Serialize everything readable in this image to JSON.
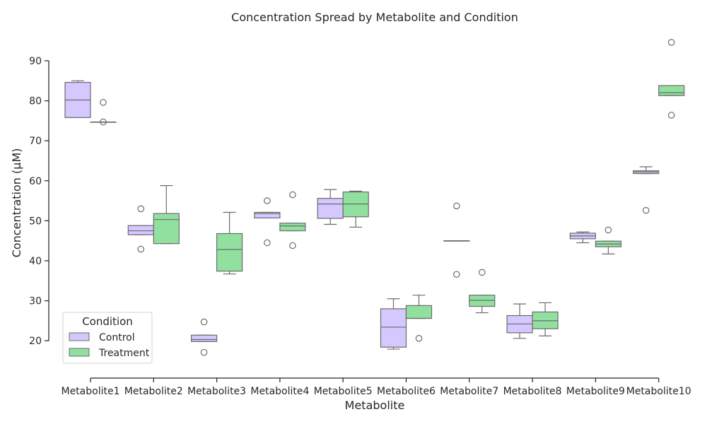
{
  "chart_data": {
    "type": "box",
    "title": "Concentration Spread by Metabolite and Condition",
    "xlabel": "Metabolite",
    "ylabel": "Concentration (μM)",
    "ylim": [
      10,
      95
    ],
    "yticks": [
      20,
      30,
      40,
      50,
      60,
      70,
      80,
      90
    ],
    "categories": [
      "Metabolite1",
      "Metabolite2",
      "Metabolite3",
      "Metabolite4",
      "Metabolite5",
      "Metabolite6",
      "Metabolite7",
      "Metabolite8",
      "Metabolite9",
      "Metabolite10"
    ],
    "legend": {
      "title": "Condition",
      "placement": "lower-left"
    },
    "series": [
      {
        "name": "Control",
        "color": "#d4c8ff",
        "boxes": [
          {
            "whislo": 75.8,
            "q1": 75.8,
            "med": 80.2,
            "q3": 84.6,
            "whishi": 85.0,
            "fliers": []
          },
          {
            "whislo": 46.5,
            "q1": 46.5,
            "med": 47.5,
            "q3": 48.8,
            "whishi": 48.8,
            "fliers": [
              53.0,
              42.9
            ]
          },
          {
            "whislo": 19.8,
            "q1": 19.8,
            "med": 20.3,
            "q3": 21.4,
            "whishi": 21.4,
            "fliers": [
              24.7,
              17.1
            ]
          },
          {
            "whislo": 50.7,
            "q1": 50.7,
            "med": 51.8,
            "q3": 52.1,
            "whishi": 52.1,
            "fliers": [
              55.0,
              44.5
            ]
          },
          {
            "whislo": 49.1,
            "q1": 50.6,
            "med": 54.2,
            "q3": 55.6,
            "whishi": 57.8,
            "fliers": []
          },
          {
            "whislo": 17.9,
            "q1": 18.4,
            "med": 23.4,
            "q3": 28.0,
            "whishi": 30.5,
            "fliers": []
          },
          {
            "whislo": 45.0,
            "q1": 45.0,
            "med": 45.0,
            "q3": 45.0,
            "whishi": 45.0,
            "fliers": [
              53.7,
              36.6
            ]
          },
          {
            "whislo": 20.6,
            "q1": 22.0,
            "med": 24.2,
            "q3": 26.3,
            "whishi": 29.2,
            "fliers": []
          },
          {
            "whislo": 44.5,
            "q1": 45.5,
            "med": 46.2,
            "q3": 46.9,
            "whishi": 47.2,
            "fliers": []
          },
          {
            "whislo": 61.8,
            "q1": 61.8,
            "med": 62.2,
            "q3": 62.5,
            "whishi": 63.5,
            "fliers": [
              52.6
            ]
          }
        ]
      },
      {
        "name": "Treatment",
        "color": "#92e0a0",
        "boxes": [
          {
            "whislo": 74.7,
            "q1": 74.7,
            "med": 74.7,
            "q3": 74.7,
            "whishi": 74.7,
            "fliers": [
              79.6,
              74.7
            ]
          },
          {
            "whislo": 44.3,
            "q1": 44.3,
            "med": 50.3,
            "q3": 51.8,
            "whishi": 58.8,
            "fliers": []
          },
          {
            "whislo": 36.7,
            "q1": 37.4,
            "med": 42.8,
            "q3": 46.8,
            "whishi": 52.1,
            "fliers": []
          },
          {
            "whislo": 47.5,
            "q1": 47.5,
            "med": 48.7,
            "q3": 49.4,
            "whishi": 49.4,
            "fliers": [
              56.5,
              43.8
            ]
          },
          {
            "whislo": 48.4,
            "q1": 51.0,
            "med": 54.2,
            "q3": 57.2,
            "whishi": 57.4,
            "fliers": []
          },
          {
            "whislo": 25.6,
            "q1": 25.6,
            "med": 25.6,
            "q3": 28.8,
            "whishi": 31.4,
            "fliers": [
              20.6
            ]
          },
          {
            "whislo": 27.0,
            "q1": 28.6,
            "med": 30.1,
            "q3": 31.4,
            "whishi": 31.4,
            "fliers": [
              37.1
            ]
          },
          {
            "whislo": 21.2,
            "q1": 23.0,
            "med": 25.0,
            "q3": 27.2,
            "whishi": 29.5,
            "fliers": []
          },
          {
            "whislo": 41.7,
            "q1": 43.5,
            "med": 44.2,
            "q3": 44.9,
            "whishi": 44.9,
            "fliers": [
              47.7
            ]
          },
          {
            "whislo": 81.3,
            "q1": 81.3,
            "med": 82.0,
            "q3": 83.8,
            "whishi": 83.8,
            "fliers": [
              94.6,
              76.4
            ]
          }
        ]
      }
    ],
    "grid": false
  }
}
